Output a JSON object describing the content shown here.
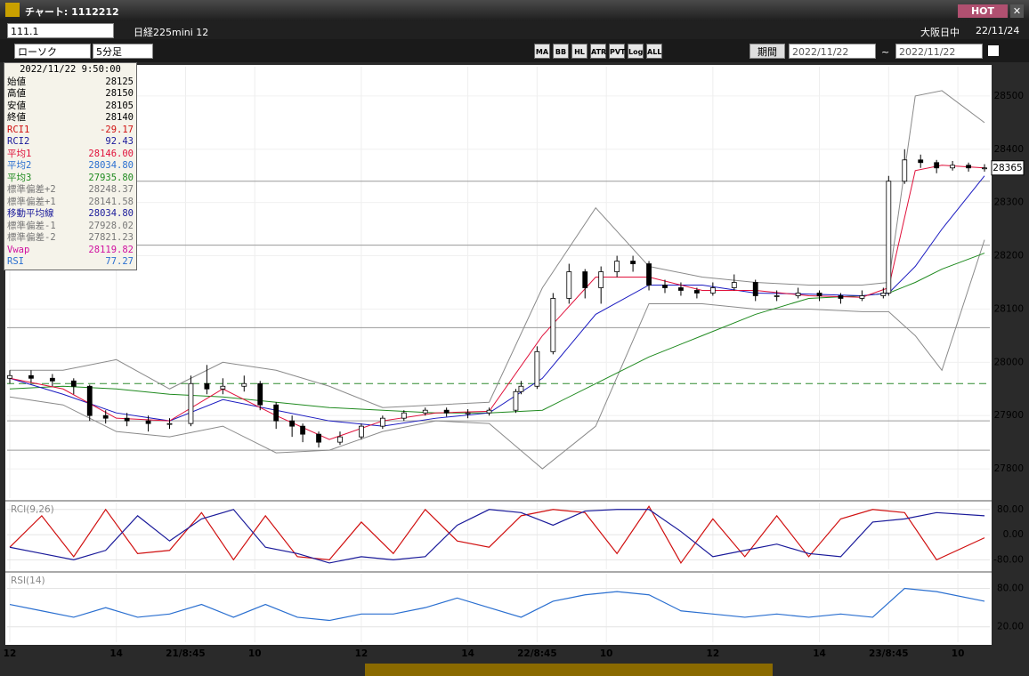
{
  "window": {
    "title": "チャート: 1112212",
    "hot": "HOT"
  },
  "toolbar": {
    "symbol": "111.1",
    "name": "日経225mini 12",
    "session": "大阪日中",
    "date": "22/11/24",
    "chart_kind": "ローソク",
    "interval": "5分足",
    "period": "期間",
    "from": "2022/11/22",
    "tilde": "~",
    "to": "2022/11/22",
    "buttons": [
      "MA",
      "BB",
      "HL",
      "ATR",
      "PVT",
      "Log",
      "ALL"
    ]
  },
  "info": {
    "time": "2022/11/22 9:50:00",
    "rows": [
      {
        "label": "始値",
        "value": "28125",
        "color": "#000000"
      },
      {
        "label": "高値",
        "value": "28150",
        "color": "#000000"
      },
      {
        "label": "安値",
        "value": "28105",
        "color": "#000000"
      },
      {
        "label": "終値",
        "value": "28140",
        "color": "#000000"
      },
      {
        "label": "RCI1",
        "value": "-29.17",
        "color": "#d01010"
      },
      {
        "label": "RCI2",
        "value": "92.43",
        "color": "#1a1a9a"
      },
      {
        "label": "平均1",
        "value": "28146.00",
        "color": "#e0103a"
      },
      {
        "label": "平均2",
        "value": "28034.80",
        "color": "#2a6fd0"
      },
      {
        "label": "平均3",
        "value": "27935.80",
        "color": "#1f8a1f"
      },
      {
        "label": "標準偏差+2",
        "value": "28248.37",
        "color": "#777777"
      },
      {
        "label": "標準偏差+1",
        "value": "28141.58",
        "color": "#777777"
      },
      {
        "label": "移動平均線",
        "value": "28034.80",
        "color": "#1a1a9a"
      },
      {
        "label": "標準偏差-1",
        "value": "27928.02",
        "color": "#777777"
      },
      {
        "label": "標準偏差-2",
        "value": "27821.23",
        "color": "#777777"
      },
      {
        "label": "Vwap",
        "value": "28119.82",
        "color": "#d010a0"
      },
      {
        "label": "RSI",
        "value": "77.27",
        "color": "#2a6fd0"
      }
    ]
  },
  "chart_data": [
    {
      "type": "candlestick",
      "xlim": [
        -0.5,
        184
      ],
      "ylim": [
        27745,
        28555
      ],
      "yticks": [
        27800,
        27900,
        28000,
        28100,
        28200,
        28300,
        28400,
        28500
      ],
      "xticks": [
        {
          "value": 0,
          "label": "12"
        },
        {
          "value": 20,
          "label": "14"
        },
        {
          "value": 33,
          "label": "21/8:45"
        },
        {
          "value": 46,
          "label": "10"
        },
        {
          "value": 66,
          "label": "12"
        },
        {
          "value": 86,
          "label": "14"
        },
        {
          "value": 99,
          "label": "22/8:45"
        },
        {
          "value": 112,
          "label": "10"
        },
        {
          "value": 132,
          "label": "12"
        },
        {
          "value": 152,
          "label": "14"
        },
        {
          "value": 165,
          "label": "23/8:45"
        },
        {
          "value": 178,
          "label": "10"
        }
      ],
      "x": [
        0,
        4,
        8,
        12,
        15,
        18,
        22,
        26,
        30,
        34,
        37,
        40,
        44,
        47,
        50,
        53,
        55,
        58,
        62,
        66,
        70,
        74,
        78,
        82,
        86,
        90,
        95,
        96,
        99,
        102,
        105,
        108,
        111,
        114,
        117,
        120,
        123,
        126,
        129,
        132,
        136,
        140,
        144,
        148,
        152,
        156,
        160,
        164,
        165,
        168,
        171,
        174,
        177,
        180,
        183
      ],
      "open": [
        27970,
        27975,
        27970,
        27965,
        27955,
        27900,
        27895,
        27890,
        27885,
        27885,
        27960,
        27950,
        27955,
        27960,
        27920,
        27890,
        27880,
        27865,
        27850,
        27860,
        27880,
        27895,
        27905,
        27910,
        27905,
        27905,
        27910,
        27945,
        27955,
        28020,
        28120,
        28170,
        28140,
        28170,
        28190,
        28185,
        28145,
        28140,
        28135,
        28130,
        28140,
        28150,
        28125,
        28125,
        28130,
        28125,
        28120,
        28125,
        28130,
        28340,
        28380,
        28375,
        28365,
        28370,
        28365
      ],
      "high": [
        27985,
        27985,
        27978,
        27970,
        27958,
        27910,
        27905,
        27900,
        27895,
        27975,
        27995,
        27970,
        27975,
        27965,
        27925,
        27900,
        27885,
        27870,
        27870,
        27885,
        27900,
        27910,
        27915,
        27915,
        27912,
        27915,
        27950,
        27965,
        28030,
        28130,
        28185,
        28175,
        28180,
        28200,
        28200,
        28190,
        28155,
        28150,
        28140,
        28150,
        28165,
        28155,
        28135,
        28140,
        28135,
        28130,
        28135,
        28140,
        28350,
        28400,
        28390,
        28380,
        28378,
        28375,
        28372
      ],
      "low": [
        27960,
        27962,
        27955,
        27940,
        27890,
        27885,
        27880,
        27870,
        27875,
        27880,
        27940,
        27940,
        27945,
        27910,
        27875,
        27860,
        27850,
        27840,
        27845,
        27855,
        27875,
        27890,
        27900,
        27898,
        27895,
        27900,
        27905,
        27940,
        27950,
        28015,
        28110,
        28120,
        28110,
        28160,
        28170,
        28135,
        28130,
        28125,
        28120,
        28125,
        28135,
        28115,
        28115,
        28120,
        28115,
        28110,
        28115,
        28120,
        28125,
        28335,
        28365,
        28355,
        28360,
        28358,
        28358
      ],
      "close": [
        27975,
        27970,
        27965,
        27955,
        27900,
        27895,
        27890,
        27885,
        27885,
        27960,
        27950,
        27955,
        27960,
        27920,
        27890,
        27880,
        27865,
        27850,
        27860,
        27880,
        27895,
        27905,
        27910,
        27905,
        27905,
        27910,
        27945,
        27955,
        28020,
        28120,
        28170,
        28140,
        28170,
        28190,
        28185,
        28145,
        28140,
        28135,
        28130,
        28140,
        28150,
        28125,
        28125,
        28130,
        28125,
        28120,
        28125,
        28130,
        28340,
        28380,
        28375,
        28365,
        28370,
        28365,
        28365
      ],
      "up_color": "#ffffff",
      "down_color": "#000000",
      "grid": true,
      "series": [
        {
          "name": "標準偏差+2",
          "color": "#8a8a8a",
          "x": [
            0,
            10,
            20,
            30,
            40,
            50,
            60,
            70,
            80,
            90,
            100,
            110,
            120,
            130,
            140,
            150,
            160,
            165,
            170,
            175,
            183
          ],
          "values": [
            27985,
            27985,
            28005,
            27950,
            28000,
            27985,
            27955,
            27915,
            27920,
            27925,
            28140,
            28290,
            28180,
            28160,
            28150,
            28145,
            28145,
            28150,
            28500,
            28510,
            28450
          ]
        },
        {
          "name": "標準偏差-2",
          "color": "#8a8a8a",
          "x": [
            0,
            10,
            20,
            30,
            40,
            50,
            60,
            70,
            80,
            90,
            100,
            110,
            120,
            130,
            140,
            150,
            160,
            165,
            170,
            175,
            183
          ],
          "values": [
            27935,
            27920,
            27870,
            27860,
            27880,
            27830,
            27835,
            27870,
            27890,
            27885,
            27800,
            27880,
            28110,
            28110,
            28100,
            28100,
            28095,
            28095,
            28050,
            27985,
            28230
          ]
        },
        {
          "name": "平均3",
          "color": "#1f8a1f",
          "x": [
            0,
            10,
            20,
            30,
            40,
            50,
            60,
            70,
            80,
            90,
            100,
            110,
            120,
            130,
            140,
            150,
            160,
            165,
            170,
            175,
            183
          ],
          "values": [
            27950,
            27955,
            27950,
            27940,
            27935,
            27925,
            27915,
            27910,
            27905,
            27905,
            27910,
            27960,
            28010,
            28050,
            28090,
            28120,
            28125,
            28130,
            28150,
            28175,
            28205
          ]
        },
        {
          "name": "平均2",
          "color": "#1a1ac0",
          "x": [
            0,
            10,
            20,
            30,
            40,
            50,
            60,
            70,
            80,
            90,
            100,
            110,
            120,
            130,
            140,
            150,
            160,
            165,
            170,
            175,
            183
          ],
          "values": [
            27970,
            27940,
            27905,
            27890,
            27930,
            27910,
            27890,
            27880,
            27895,
            27905,
            27970,
            28090,
            28145,
            28145,
            28130,
            28128,
            28125,
            28130,
            28180,
            28250,
            28350
          ]
        },
        {
          "name": "平均1",
          "color": "#e0103a",
          "x": [
            0,
            10,
            20,
            30,
            40,
            50,
            60,
            70,
            80,
            90,
            100,
            110,
            120,
            130,
            140,
            150,
            160,
            165,
            170,
            175,
            183
          ],
          "values": [
            27970,
            27950,
            27895,
            27890,
            27950,
            27900,
            27855,
            27890,
            27905,
            27908,
            28050,
            28160,
            28160,
            28135,
            28135,
            28125,
            28122,
            28140,
            28360,
            28370,
            28365
          ]
        }
      ],
      "reference_lines": [
        {
          "value": 27960,
          "color": "#2e8b2e",
          "dashed": true
        },
        {
          "value": 28340,
          "color": "#9a9a9a",
          "dashed": false
        },
        {
          "value": 28220,
          "color": "#9a9a9a",
          "dashed": false
        },
        {
          "value": 28065,
          "color": "#9a9a9a",
          "dashed": false
        },
        {
          "value": 27890,
          "color": "#9a9a9a",
          "dashed": false
        },
        {
          "value": 27835,
          "color": "#9a9a9a",
          "dashed": false
        }
      ],
      "last_price": 28365
    },
    {
      "type": "line",
      "title": "RCI(9,26)",
      "xlim": [
        -0.5,
        184
      ],
      "ylim": [
        -110,
        102
      ],
      "yticks": [
        {
          "value": 80,
          "label": "80.00"
        },
        {
          "value": 0,
          "label": "0.00"
        },
        {
          "value": -80,
          "label": "-80.00"
        }
      ],
      "x": [
        0,
        6,
        12,
        18,
        24,
        30,
        36,
        42,
        48,
        54,
        60,
        66,
        72,
        78,
        84,
        90,
        96,
        102,
        108,
        114,
        120,
        126,
        132,
        138,
        144,
        150,
        156,
        162,
        168,
        174,
        183
      ],
      "series": [
        {
          "name": "RCI1",
          "color": "#d01010",
          "values": [
            -40,
            60,
            -70,
            80,
            -60,
            -50,
            70,
            -80,
            60,
            -70,
            -80,
            40,
            -60,
            80,
            -20,
            -40,
            60,
            80,
            70,
            -60,
            90,
            -90,
            50,
            -70,
            60,
            -70,
            50,
            80,
            70,
            -80,
            -10
          ]
        },
        {
          "name": "RCI2",
          "color": "#1a1a9a",
          "values": [
            -40,
            -60,
            -80,
            -50,
            60,
            -20,
            50,
            80,
            -40,
            -60,
            -90,
            -70,
            -80,
            -70,
            30,
            80,
            70,
            30,
            75,
            80,
            80,
            10,
            -70,
            -50,
            -30,
            -60,
            -70,
            40,
            50,
            70,
            60
          ]
        }
      ]
    },
    {
      "type": "line",
      "title": "RSI(14)",
      "xlim": [
        -0.5,
        184
      ],
      "ylim": [
        -4,
        103
      ],
      "yticks": [
        {
          "value": 80,
          "label": "80.00"
        },
        {
          "value": 20,
          "label": "20.00"
        }
      ],
      "x": [
        0,
        6,
        12,
        18,
        24,
        30,
        36,
        42,
        48,
        54,
        60,
        66,
        72,
        78,
        84,
        90,
        96,
        102,
        108,
        114,
        120,
        126,
        132,
        138,
        144,
        150,
        156,
        162,
        168,
        174,
        183
      ],
      "series": [
        {
          "name": "RSI",
          "color": "#2a6fd0",
          "values": [
            55,
            45,
            35,
            50,
            35,
            40,
            55,
            35,
            55,
            35,
            30,
            40,
            40,
            50,
            65,
            50,
            35,
            60,
            70,
            75,
            70,
            45,
            40,
            35,
            40,
            35,
            40,
            35,
            80,
            75,
            60
          ]
        }
      ]
    }
  ]
}
